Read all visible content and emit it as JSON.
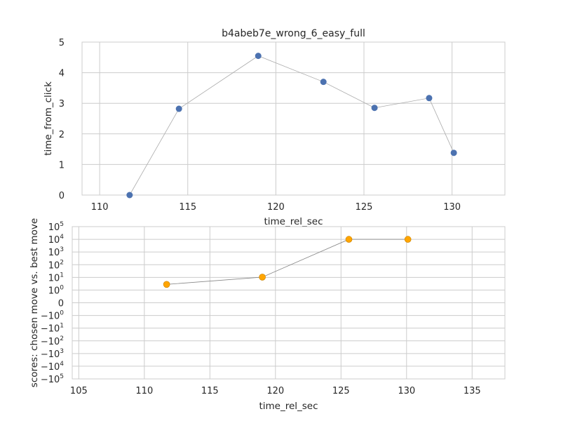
{
  "chart_data": [
    {
      "type": "line",
      "title": "b4abeb7e_wrong_6_easy_full",
      "xlabel": "time_rel_sec",
      "ylabel": "time_from_click",
      "xlim": [
        109.0,
        133.0
      ],
      "ylim": [
        0,
        5
      ],
      "x_ticks": [
        110,
        115,
        120,
        125,
        130
      ],
      "y_ticks": [
        0,
        1,
        2,
        3,
        4,
        5
      ],
      "grid": true,
      "marker_color": "#4C72B0",
      "line_color": "#aaaaaa",
      "series": [
        {
          "x": [
            111.7,
            114.5,
            119.0,
            122.7,
            125.6,
            128.7,
            130.1
          ],
          "y": [
            0.0,
            2.82,
            4.55,
            3.7,
            2.85,
            3.17,
            1.38
          ]
        }
      ]
    },
    {
      "type": "line",
      "title": "",
      "xlabel": "time_rel_sec",
      "ylabel": "scores: chosen move vs. best move",
      "xlim": [
        104.5,
        137.5
      ],
      "y_scale": "symlog",
      "ylim": [
        -100000,
        100000
      ],
      "x_ticks": [
        105,
        110,
        115,
        120,
        125,
        130,
        135
      ],
      "y_ticks": [
        {
          "value": 100000,
          "base": "10",
          "exp": "5"
        },
        {
          "value": 10000,
          "base": "10",
          "exp": "4"
        },
        {
          "value": 1000,
          "base": "10",
          "exp": "3"
        },
        {
          "value": 100,
          "base": "10",
          "exp": "2"
        },
        {
          "value": 10,
          "base": "10",
          "exp": "1"
        },
        {
          "value": 1,
          "base": "10",
          "exp": "0"
        },
        {
          "value": 0,
          "base": "0",
          "exp": ""
        },
        {
          "value": -1,
          "base": "−10",
          "exp": "0"
        },
        {
          "value": -10,
          "base": "−10",
          "exp": "1"
        },
        {
          "value": -100,
          "base": "−10",
          "exp": "2"
        },
        {
          "value": -1000,
          "base": "−10",
          "exp": "3"
        },
        {
          "value": -10000,
          "base": "−10",
          "exp": "4"
        },
        {
          "value": -100000,
          "base": "−10",
          "exp": "5"
        }
      ],
      "grid": true,
      "marker_color": "#FFA500",
      "line_color": "#888888",
      "series": [
        {
          "x": [
            111.7,
            119.0,
            125.6,
            130.1
          ],
          "y": [
            2.8,
            10.5,
            10000,
            10000
          ]
        }
      ]
    }
  ]
}
